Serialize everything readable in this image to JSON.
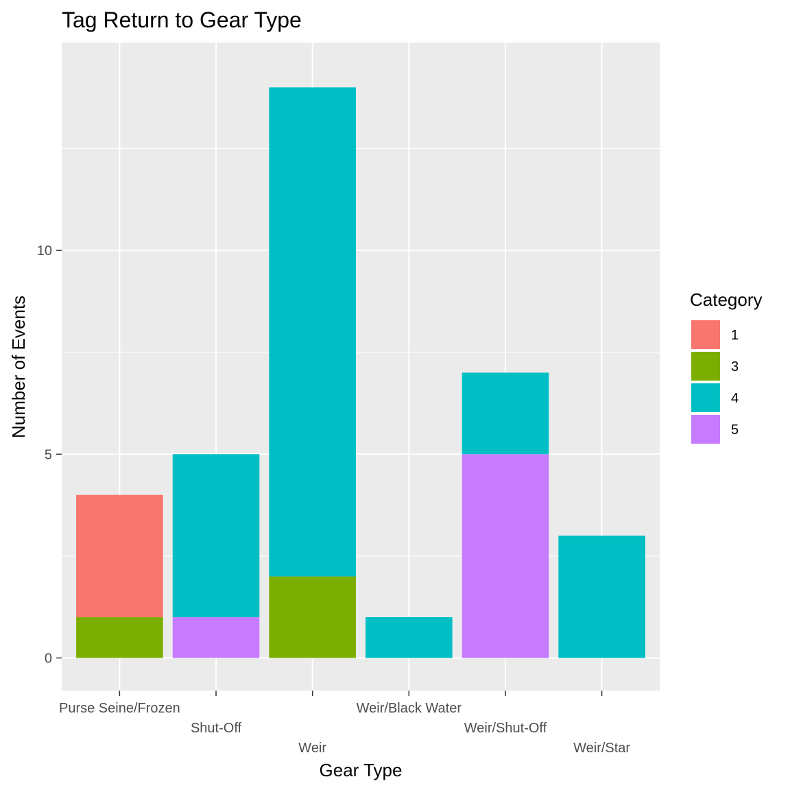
{
  "chart_data": {
    "type": "bar",
    "stacked": true,
    "title": "Tag Return to Gear Type",
    "xlabel": "Gear Type",
    "ylabel": "Number of Events",
    "ylim": [
      -0.8,
      15.1
    ],
    "yticks": [
      0,
      5,
      10
    ],
    "grid": true,
    "legend_position": "right",
    "legend_title": "Category",
    "categories": [
      "Purse Seine/Frozen",
      "Shut-Off",
      "Weir",
      "Weir/Black Water",
      "Weir/Shut-Off",
      "Weir/Star"
    ],
    "series": [
      {
        "name": "1",
        "color": "#F8766D",
        "values": [
          3,
          0,
          0,
          0,
          0,
          0
        ]
      },
      {
        "name": "3",
        "color": "#7CAE00",
        "values": [
          1,
          0,
          2,
          0,
          0,
          0
        ]
      },
      {
        "name": "4",
        "color": "#00BFC4",
        "values": [
          0,
          4,
          12,
          1,
          2,
          3
        ]
      },
      {
        "name": "5",
        "color": "#C77CFF",
        "values": [
          0,
          1,
          0,
          0,
          5,
          0
        ]
      }
    ],
    "stack_order_bottom_to_top": [
      "5",
      "3",
      "4",
      "1"
    ]
  },
  "colors": {
    "panel_background": "#EBEBEB",
    "grid_line": "#FFFFFF",
    "tick_text": "#4D4D4D",
    "tick_mark": "#333333"
  }
}
